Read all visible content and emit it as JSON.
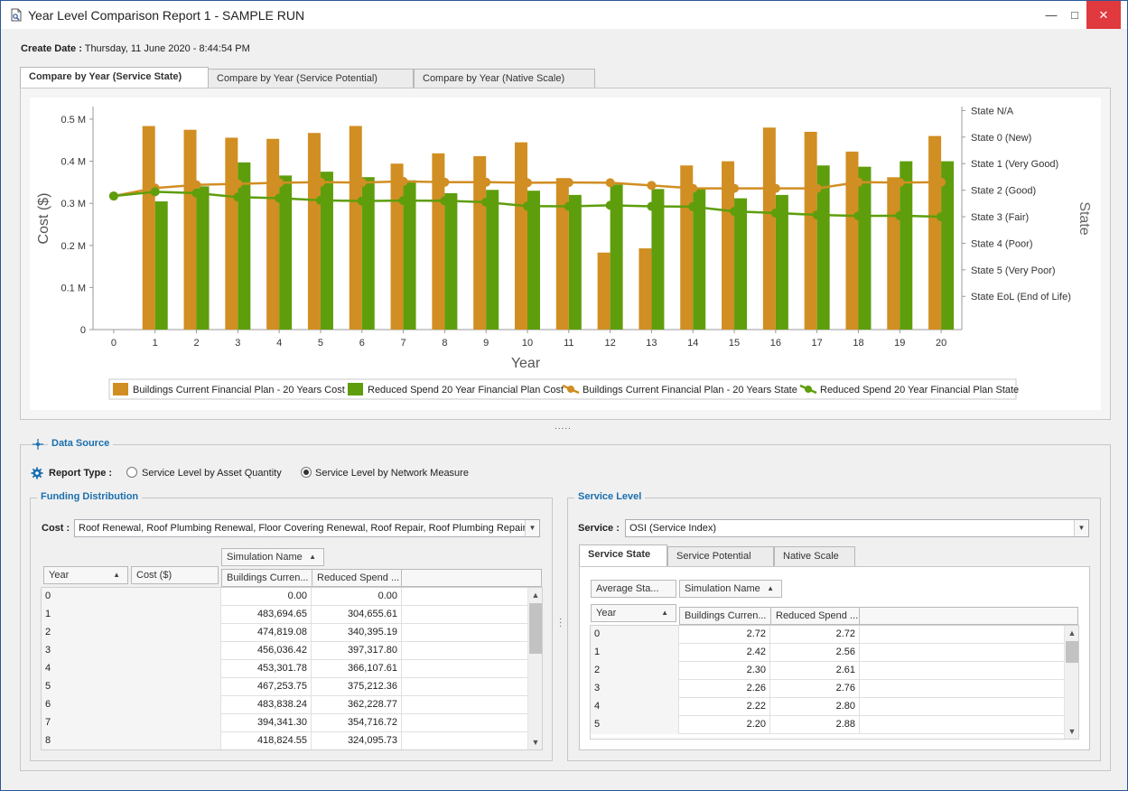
{
  "window": {
    "title": "Year Level Comparison Report 1 - SAMPLE RUN",
    "min": "—",
    "max": "□",
    "close": "✕"
  },
  "create_date": {
    "label": "Create Date :",
    "value": "Thursday, 11 June 2020 - 8:44:54 PM"
  },
  "tabs": [
    "Compare by Year (Service State)",
    "Compare by Year (Service Potential)",
    "Compare by Year (Native Scale)"
  ],
  "splitter": ".....",
  "chart_data": {
    "type": "bar",
    "categories": [
      "0",
      "1",
      "2",
      "3",
      "4",
      "5",
      "6",
      "7",
      "8",
      "9",
      "10",
      "11",
      "12",
      "13",
      "14",
      "15",
      "16",
      "17",
      "18",
      "19",
      "20"
    ],
    "series": [
      {
        "name": "Buildings Current Financial Plan - 20 Years Cost",
        "kind": "bar",
        "axis": "cost",
        "color": "#d18e22",
        "values": [
          0,
          483694.65,
          474819.08,
          456036.42,
          453301.78,
          467253.75,
          483838.24,
          394341.3,
          418824.55,
          412000,
          445000,
          360000,
          183000,
          193000,
          390000,
          400000,
          480000,
          470000,
          423000,
          362000,
          460000
        ]
      },
      {
        "name": "Reduced Spend 20 Year Financial Plan Cost",
        "kind": "bar",
        "axis": "cost",
        "color": "#5e9e0c",
        "values": [
          0,
          304655.61,
          340395.19,
          397317.8,
          366107.61,
          375212.36,
          362228.77,
          354716.72,
          324095.73,
          332000,
          330000,
          320000,
          345000,
          334000,
          334000,
          312000,
          320000,
          390000,
          387000,
          400000,
          400000
        ]
      },
      {
        "name": "Buildings Current Financial Plan - 20 Years State",
        "kind": "line",
        "axis": "state",
        "color": "#d18e22",
        "values": [
          2.72,
          2.42,
          2.3,
          2.26,
          2.22,
          2.2,
          2.21,
          2.17,
          2.2,
          2.2,
          2.22,
          2.21,
          2.22,
          2.32,
          2.43,
          2.43,
          2.43,
          2.43,
          2.2,
          2.21,
          2.2
        ]
      },
      {
        "name": "Reduced Spend 20 Year Financial Plan State",
        "kind": "line",
        "axis": "state",
        "color": "#5e9e0c",
        "values": [
          2.72,
          2.56,
          2.61,
          2.76,
          2.8,
          2.88,
          2.91,
          2.89,
          2.9,
          2.95,
          3.1,
          3.11,
          3.07,
          3.11,
          3.12,
          3.3,
          3.36,
          3.43,
          3.47,
          3.46,
          3.5
        ]
      }
    ],
    "xlabel": "Year",
    "ylabel": "Cost ($)",
    "ylim": [
      0,
      530000
    ],
    "yticks": [
      {
        "v": 0,
        "t": "0"
      },
      {
        "v": 100000,
        "t": "0.1 M"
      },
      {
        "v": 200000,
        "t": "0.2 M"
      },
      {
        "v": 300000,
        "t": "0.3 M"
      },
      {
        "v": 400000,
        "t": "0.4 M"
      },
      {
        "v": 500000,
        "t": "0.5 M"
      }
    ],
    "y2label": "State",
    "y2lim": [
      -0.65,
      7.75
    ],
    "y2ticks": [
      "State N/A",
      "State 0 (New)",
      "State 1 (Very Good)",
      "State 2 (Good)",
      "State 3 (Fair)",
      "State 4 (Poor)",
      "State 5 (Very Poor)",
      "State EoL (End of Life)"
    ],
    "y2tick_values": [
      -0.5,
      0.5,
      1.5,
      2.5,
      3.5,
      4.5,
      5.5,
      6.5
    ],
    "legend_position": "bottom",
    "grid": false
  },
  "data_source": {
    "title": "Data Source",
    "report_type_label": "Report Type :",
    "options": [
      "Service Level by Asset Quantity",
      "Service Level by Network Measure"
    ],
    "selected": 1
  },
  "funding": {
    "title": "Funding Distribution",
    "cost_label": "Cost :",
    "cost_value": "Roof Renewal, Roof Plumbing Renewal, Floor Covering Renewal, Roof Repair, Roof Plumbing Repair...",
    "group_header": "Simulation Name",
    "col_year": "Year",
    "col_cost": "Cost ($)",
    "col_a": "Buildings Curren...",
    "col_b": "Reduced Spend ...",
    "rows": [
      [
        "0",
        "0.00",
        "0.00"
      ],
      [
        "1",
        "483,694.65",
        "304,655.61"
      ],
      [
        "2",
        "474,819.08",
        "340,395.19"
      ],
      [
        "3",
        "456,036.42",
        "397,317.80"
      ],
      [
        "4",
        "453,301.78",
        "366,107.61"
      ],
      [
        "5",
        "467,253.75",
        "375,212.36"
      ],
      [
        "6",
        "483,838.24",
        "362,228.77"
      ],
      [
        "7",
        "394,341.30",
        "354,716.72"
      ],
      [
        "8",
        "418,824.55",
        "324,095.73"
      ]
    ]
  },
  "service": {
    "title": "Service Level",
    "service_label": "Service :",
    "service_value": "OSI (Service Index)",
    "tabs": [
      "Service State",
      "Service Potential",
      "Native Scale"
    ],
    "avg_header": "Average Sta...",
    "group_header": "Simulation Name",
    "col_year": "Year",
    "col_a": "Buildings Curren...",
    "col_b": "Reduced Spend ...",
    "rows": [
      [
        "0",
        "2.72",
        "2.72"
      ],
      [
        "1",
        "2.42",
        "2.56"
      ],
      [
        "2",
        "2.30",
        "2.61"
      ],
      [
        "3",
        "2.26",
        "2.76"
      ],
      [
        "4",
        "2.22",
        "2.80"
      ],
      [
        "5",
        "2.20",
        "2.88"
      ]
    ]
  }
}
